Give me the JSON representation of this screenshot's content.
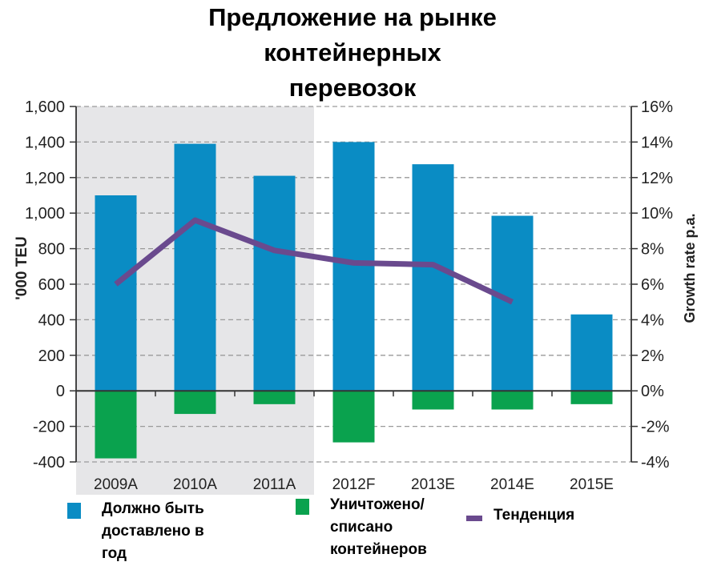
{
  "title_lines": [
    "Предложение на рынке",
    "контейнерных",
    "перевозок"
  ],
  "colors": {
    "delivered": "#0a8cc4",
    "scrapped": "#0aa24e",
    "trend": "#6a4a8e",
    "shade": "#e6e6e8",
    "grid": "#9a9a9a",
    "axis": "#333333"
  },
  "legend": [
    {
      "label": "Должно быть\nдоставлено в\nгод",
      "color": "#0a8cc4",
      "shape": "square"
    },
    {
      "label": "Уничтожено/\nсписано\nконтейнеров",
      "color": "#0aa24e",
      "shape": "square"
    },
    {
      "label": "Тенденция",
      "color": "#6a4a8e",
      "shape": "line"
    }
  ],
  "chart_data": {
    "type": "bar",
    "title": "Предложение на рынке контейнерных перевозок",
    "categories": [
      "2009A",
      "2010A",
      "2011A",
      "2012F",
      "2013E",
      "2014E",
      "2015E"
    ],
    "series": [
      {
        "name": "Должно быть доставлено в год",
        "type": "bar",
        "axis": "left",
        "values": [
          1100,
          1390,
          1210,
          1400,
          1275,
          985,
          430
        ]
      },
      {
        "name": "Уничтожено/списано контейнеров",
        "type": "bar",
        "axis": "left",
        "values": [
          -380,
          -130,
          -75,
          -290,
          -105,
          -105,
          -75
        ]
      },
      {
        "name": "Тенденция",
        "type": "line",
        "axis": "right",
        "values": [
          6.0,
          9.6,
          7.9,
          7.2,
          7.1,
          5.0,
          null
        ]
      }
    ],
    "ylabel": "'000 TEU",
    "ylabel_right": "Growth rate p.a.",
    "xlabel": "",
    "ylim": [
      -400,
      1600
    ],
    "ylim_right": [
      -4,
      16
    ],
    "yticks": [
      "1,600",
      "1,400",
      "1,200",
      "1,000",
      "800",
      "600",
      "400",
      "200",
      "0",
      "-200",
      "-400"
    ],
    "yticks_right": [
      "16%",
      "14%",
      "12%",
      "10%",
      "8%",
      "6%",
      "4%",
      "2%",
      "0%",
      "-2%",
      "-4%"
    ],
    "shaded_region": [
      "2009A",
      "2011A"
    ],
    "grid": "dashed horizontal",
    "legend_position": "bottom"
  }
}
